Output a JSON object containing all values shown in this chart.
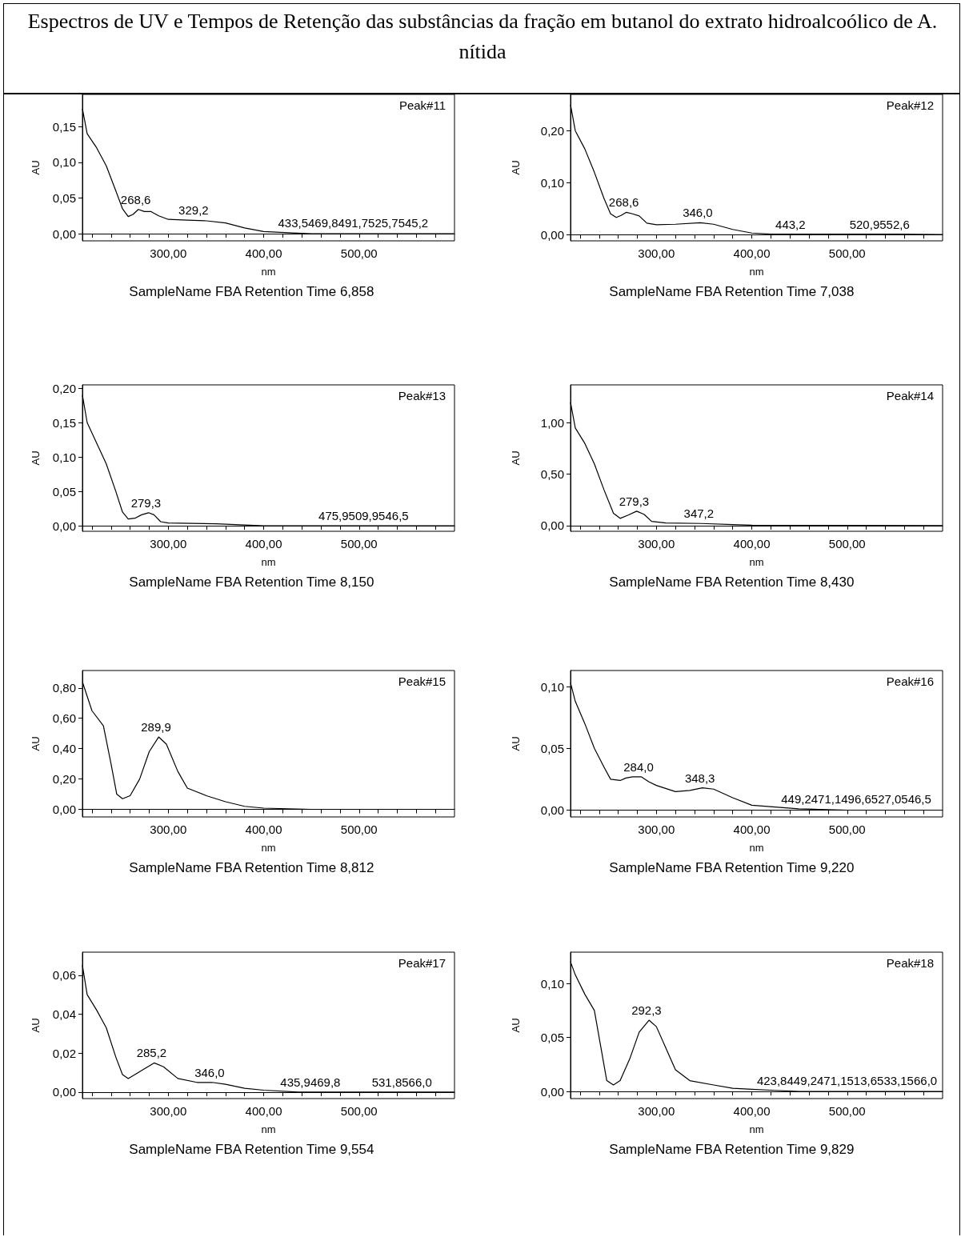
{
  "chart_data": [
    {
      "type": "other",
      "title": "Espectros de UV e Tempos de Retenção das substâncias da fração em butanol do extrato hidroalcoólico de A. nítida"
    },
    {
      "type": "line",
      "title": "Peak#11",
      "xlabel": "nm",
      "ylabel": "AU",
      "color": "#000000",
      "xlim": [
        210,
        600
      ],
      "ylim": [
        -0.01,
        0.195
      ],
      "xticks": [
        {
          "value": 220,
          "label": null
        },
        {
          "value": 240,
          "label": null
        },
        {
          "value": 260,
          "label": null
        },
        {
          "value": 280,
          "label": null
        },
        {
          "value": 300,
          "label": "300,00"
        },
        {
          "value": 320,
          "label": null
        },
        {
          "value": 340,
          "label": null
        },
        {
          "value": 360,
          "label": null
        },
        {
          "value": 380,
          "label": null
        },
        {
          "value": 400,
          "label": "400,00"
        },
        {
          "value": 420,
          "label": null
        },
        {
          "value": 440,
          "label": null
        },
        {
          "value": 460,
          "label": null
        },
        {
          "value": 480,
          "label": null
        },
        {
          "value": 500,
          "label": "500,00"
        },
        {
          "value": 520,
          "label": null
        },
        {
          "value": 540,
          "label": null
        },
        {
          "value": 560,
          "label": null
        },
        {
          "value": 580,
          "label": null
        }
      ],
      "yticks": [
        {
          "value": 0,
          "label": "0,00"
        },
        {
          "value": 0.05,
          "label": "0,05"
        },
        {
          "value": 0.1,
          "label": "0,10"
        },
        {
          "value": 0.15,
          "label": "0,15"
        }
      ],
      "x": [
        210,
        215,
        225,
        235,
        245,
        252,
        258,
        263,
        268.6,
        275,
        282,
        290,
        300,
        320,
        340,
        360,
        380,
        400,
        430,
        450,
        500,
        550,
        600
      ],
      "values": [
        0.175,
        0.14,
        0.12,
        0.095,
        0.06,
        0.035,
        0.024,
        0.027,
        0.034,
        0.031,
        0.031,
        0.025,
        0.02,
        0.019,
        0.018,
        0.015,
        0.008,
        0.003,
        0.001,
        0,
        0,
        0,
        0
      ],
      "annotations": [
        "SampleName FBA Retention Time 6,858",
        {
          "text": "268,6",
          "x": 268.6,
          "y": 0.034
        },
        {
          "text": "329,2",
          "x": 329.2,
          "y": 0.019
        },
        {
          "text": "433,5469,8491,7525,7545,2",
          "x": 433.5,
          "y": 0.001
        }
      ]
    },
    {
      "type": "line",
      "title": "Peak#12",
      "xlabel": "nm",
      "ylabel": "AU",
      "color": "#000000",
      "xlim": [
        210,
        600
      ],
      "ylim": [
        -0.012,
        0.27
      ],
      "xticks": [
        {
          "value": 220,
          "label": null
        },
        {
          "value": 240,
          "label": null
        },
        {
          "value": 260,
          "label": null
        },
        {
          "value": 280,
          "label": null
        },
        {
          "value": 300,
          "label": "300,00"
        },
        {
          "value": 320,
          "label": null
        },
        {
          "value": 340,
          "label": null
        },
        {
          "value": 360,
          "label": null
        },
        {
          "value": 380,
          "label": null
        },
        {
          "value": 400,
          "label": "400,00"
        },
        {
          "value": 420,
          "label": null
        },
        {
          "value": 440,
          "label": null
        },
        {
          "value": 460,
          "label": null
        },
        {
          "value": 480,
          "label": null
        },
        {
          "value": 500,
          "label": "500,00"
        },
        {
          "value": 520,
          "label": null
        },
        {
          "value": 540,
          "label": null
        },
        {
          "value": 560,
          "label": null
        },
        {
          "value": 580,
          "label": null
        }
      ],
      "yticks": [
        {
          "value": 0,
          "label": "0,00"
        },
        {
          "value": 0.1,
          "label": "0,10"
        },
        {
          "value": 0.2,
          "label": "0,20"
        }
      ],
      "x": [
        210,
        215,
        225,
        235,
        245,
        252,
        258,
        263,
        268.6,
        275,
        282,
        290,
        300,
        320,
        346,
        360,
        380,
        400,
        420,
        443.2,
        500,
        520.9,
        552.6,
        600
      ],
      "values": [
        0.25,
        0.2,
        0.165,
        0.12,
        0.07,
        0.04,
        0.033,
        0.037,
        0.043,
        0.04,
        0.036,
        0.022,
        0.019,
        0.02,
        0.023,
        0.02,
        0.01,
        0.003,
        0.001,
        0.001,
        0.001,
        0.001,
        0.001,
        0
      ],
      "annotations": [
        "SampleName FBA Retention Time 7,038",
        {
          "text": "268,6",
          "x": 268.6,
          "y": 0.043
        },
        {
          "text": "346,0",
          "x": 346,
          "y": 0.023
        },
        {
          "text": "443,2",
          "x": 443.2,
          "y": 0.001
        },
        {
          "text": "520,9552,6",
          "x": 520.9,
          "y": 0.001
        }
      ]
    },
    {
      "type": "line",
      "title": "Peak#13",
      "xlabel": "nm",
      "ylabel": "AU",
      "color": "#000000",
      "xlim": [
        210,
        600
      ],
      "ylim": [
        -0.008,
        0.205
      ],
      "xticks": [
        {
          "value": 220,
          "label": null
        },
        {
          "value": 240,
          "label": null
        },
        {
          "value": 260,
          "label": null
        },
        {
          "value": 280,
          "label": null
        },
        {
          "value": 300,
          "label": "300,00"
        },
        {
          "value": 320,
          "label": null
        },
        {
          "value": 340,
          "label": null
        },
        {
          "value": 360,
          "label": null
        },
        {
          "value": 380,
          "label": null
        },
        {
          "value": 400,
          "label": "400,00"
        },
        {
          "value": 420,
          "label": null
        },
        {
          "value": 440,
          "label": null
        },
        {
          "value": 460,
          "label": null
        },
        {
          "value": 480,
          "label": null
        },
        {
          "value": 500,
          "label": "500,00"
        },
        {
          "value": 520,
          "label": null
        },
        {
          "value": 540,
          "label": null
        },
        {
          "value": 560,
          "label": null
        },
        {
          "value": 580,
          "label": null
        }
      ],
      "yticks": [
        {
          "value": 0,
          "label": "0,00"
        },
        {
          "value": 0.05,
          "label": "0,05"
        },
        {
          "value": 0.1,
          "label": "0,10"
        },
        {
          "value": 0.15,
          "label": "0,15"
        },
        {
          "value": 0.2,
          "label": "0,20"
        }
      ],
      "x": [
        210,
        215,
        225,
        235,
        245,
        252,
        258,
        265,
        272,
        279.3,
        285,
        292,
        300,
        350,
        400,
        475.9,
        600
      ],
      "values": [
        0.19,
        0.15,
        0.12,
        0.09,
        0.05,
        0.02,
        0.01,
        0.011,
        0.016,
        0.019,
        0.016,
        0.006,
        0.004,
        0.003,
        0,
        0,
        0
      ],
      "annotations": [
        "SampleName FBA Retention Time 8,150",
        {
          "text": "279,3",
          "x": 279.3,
          "y": 0.019
        },
        {
          "text": "475,9509,9546,5",
          "x": 475.9,
          "y": 0
        }
      ]
    },
    {
      "type": "line",
      "title": "Peak#14",
      "xlabel": "nm",
      "ylabel": "AU",
      "color": "#000000",
      "xlim": [
        210,
        600
      ],
      "ylim": [
        -0.056,
        1.37
      ],
      "xticks": [
        {
          "value": 220,
          "label": null
        },
        {
          "value": 240,
          "label": null
        },
        {
          "value": 260,
          "label": null
        },
        {
          "value": 280,
          "label": null
        },
        {
          "value": 300,
          "label": "300,00"
        },
        {
          "value": 320,
          "label": null
        },
        {
          "value": 340,
          "label": null
        },
        {
          "value": 360,
          "label": null
        },
        {
          "value": 380,
          "label": null
        },
        {
          "value": 400,
          "label": "400,00"
        },
        {
          "value": 420,
          "label": null
        },
        {
          "value": 440,
          "label": null
        },
        {
          "value": 460,
          "label": null
        },
        {
          "value": 480,
          "label": null
        },
        {
          "value": 500,
          "label": "500,00"
        },
        {
          "value": 520,
          "label": null
        },
        {
          "value": 540,
          "label": null
        },
        {
          "value": 560,
          "label": null
        },
        {
          "value": 580,
          "label": null
        }
      ],
      "yticks": [
        {
          "value": 0,
          "label": "0,00"
        },
        {
          "value": 0.5,
          "label": "0,50"
        },
        {
          "value": 1,
          "label": "1,00"
        }
      ],
      "x": [
        210,
        215,
        225,
        235,
        245,
        255,
        262,
        270,
        279.3,
        287,
        295,
        310,
        347.2,
        380,
        400,
        600
      ],
      "values": [
        1.2,
        0.95,
        0.8,
        0.6,
        0.35,
        0.12,
        0.07,
        0.1,
        0.14,
        0.11,
        0.04,
        0.025,
        0.02,
        0.01,
        0.003,
        0
      ],
      "annotations": [
        "SampleName FBA Retention Time 8,430",
        {
          "text": "279,3",
          "x": 279.3,
          "y": 0.14
        },
        {
          "text": "347,2",
          "x": 347.2,
          "y": 0.02
        }
      ]
    },
    {
      "type": "line",
      "title": "Peak#15",
      "xlabel": "nm",
      "ylabel": "AU",
      "color": "#000000",
      "xlim": [
        210,
        600
      ],
      "ylim": [
        -0.05,
        0.915
      ],
      "xticks": [
        {
          "value": 220,
          "label": null
        },
        {
          "value": 240,
          "label": null
        },
        {
          "value": 260,
          "label": null
        },
        {
          "value": 280,
          "label": null
        },
        {
          "value": 300,
          "label": "300,00"
        },
        {
          "value": 320,
          "label": null
        },
        {
          "value": 340,
          "label": null
        },
        {
          "value": 360,
          "label": null
        },
        {
          "value": 380,
          "label": null
        },
        {
          "value": 400,
          "label": "400,00"
        },
        {
          "value": 420,
          "label": null
        },
        {
          "value": 440,
          "label": null
        },
        {
          "value": 460,
          "label": null
        },
        {
          "value": 480,
          "label": null
        },
        {
          "value": 500,
          "label": "500,00"
        },
        {
          "value": 520,
          "label": null
        },
        {
          "value": 540,
          "label": null
        },
        {
          "value": 560,
          "label": null
        },
        {
          "value": 580,
          "label": null
        }
      ],
      "yticks": [
        {
          "value": 0,
          "label": "0,00"
        },
        {
          "value": 0.2,
          "label": "0,20"
        },
        {
          "value": 0.4,
          "label": "0,40"
        },
        {
          "value": 0.6,
          "label": "0,60"
        },
        {
          "value": 0.8,
          "label": "0,80"
        }
      ],
      "x": [
        210,
        220,
        232,
        240,
        246,
        252,
        260,
        270,
        280,
        289.9,
        298,
        310,
        320,
        340,
        360,
        380,
        400,
        450,
        600
      ],
      "values": [
        0.84,
        0.65,
        0.55,
        0.3,
        0.1,
        0.07,
        0.09,
        0.2,
        0.38,
        0.477,
        0.43,
        0.25,
        0.14,
        0.09,
        0.05,
        0.02,
        0.008,
        0,
        0
      ],
      "annotations": [
        "SampleName FBA Retention Time 8,812",
        {
          "text": "289,9",
          "x": 289.9,
          "y": 0.477
        }
      ]
    },
    {
      "type": "line",
      "title": "Peak#16",
      "xlabel": "nm",
      "ylabel": "AU",
      "color": "#000000",
      "xlim": [
        210,
        600
      ],
      "ylim": [
        -0.0055,
        0.113
      ],
      "xticks": [
        {
          "value": 220,
          "label": null
        },
        {
          "value": 240,
          "label": null
        },
        {
          "value": 260,
          "label": null
        },
        {
          "value": 280,
          "label": null
        },
        {
          "value": 300,
          "label": "300,00"
        },
        {
          "value": 320,
          "label": null
        },
        {
          "value": 340,
          "label": null
        },
        {
          "value": 360,
          "label": null
        },
        {
          "value": 380,
          "label": null
        },
        {
          "value": 400,
          "label": "400,00"
        },
        {
          "value": 420,
          "label": null
        },
        {
          "value": 440,
          "label": null
        },
        {
          "value": 460,
          "label": null
        },
        {
          "value": 480,
          "label": null
        },
        {
          "value": 500,
          "label": "500,00"
        },
        {
          "value": 520,
          "label": null
        },
        {
          "value": 540,
          "label": null
        },
        {
          "value": 560,
          "label": null
        },
        {
          "value": 580,
          "label": null
        }
      ],
      "yticks": [
        {
          "value": 0,
          "label": "0,00"
        },
        {
          "value": 0.05,
          "label": "0,05"
        },
        {
          "value": 0.1,
          "label": "0,10"
        }
      ],
      "x": [
        210,
        215,
        225,
        235,
        245,
        252,
        262,
        268,
        275,
        284,
        292,
        300,
        320,
        335,
        348.3,
        360,
        380,
        400,
        449.2,
        500,
        600
      ],
      "values": [
        0.103,
        0.088,
        0.07,
        0.05,
        0.035,
        0.025,
        0.024,
        0.026,
        0.027,
        0.027,
        0.023,
        0.02,
        0.015,
        0.016,
        0.018,
        0.017,
        0.01,
        0.004,
        0.001,
        0,
        0
      ],
      "annotations": [
        "SampleName FBA Retention Time 9,220",
        {
          "text": "284,0",
          "x": 284,
          "y": 0.027
        },
        {
          "text": "348,3",
          "x": 348.3,
          "y": 0.018
        },
        {
          "text": "449,2471,1496,6527,0546,5",
          "x": 449.2,
          "y": 0.001
        }
      ]
    },
    {
      "type": "line",
      "title": "Peak#17",
      "xlabel": "nm",
      "ylabel": "AU",
      "color": "#000000",
      "xlim": [
        210,
        600
      ],
      "ylim": [
        -0.0033,
        0.0718
      ],
      "xticks": [
        {
          "value": 220,
          "label": null
        },
        {
          "value": 240,
          "label": null
        },
        {
          "value": 260,
          "label": null
        },
        {
          "value": 280,
          "label": null
        },
        {
          "value": 300,
          "label": "300,00"
        },
        {
          "value": 320,
          "label": null
        },
        {
          "value": 340,
          "label": null
        },
        {
          "value": 360,
          "label": null
        },
        {
          "value": 380,
          "label": null
        },
        {
          "value": 400,
          "label": "400,00"
        },
        {
          "value": 420,
          "label": null
        },
        {
          "value": 440,
          "label": null
        },
        {
          "value": 460,
          "label": null
        },
        {
          "value": 480,
          "label": null
        },
        {
          "value": 500,
          "label": "500,00"
        },
        {
          "value": 520,
          "label": null
        },
        {
          "value": 540,
          "label": null
        },
        {
          "value": 560,
          "label": null
        },
        {
          "value": 580,
          "label": null
        }
      ],
      "yticks": [
        {
          "value": 0,
          "label": "0,00"
        },
        {
          "value": 0.02,
          "label": "0,02"
        },
        {
          "value": 0.04,
          "label": "0,04"
        },
        {
          "value": 0.06,
          "label": "0,06"
        }
      ],
      "x": [
        210,
        215,
        225,
        235,
        245,
        252,
        258,
        265,
        275,
        285.2,
        295,
        310,
        330,
        346,
        360,
        380,
        400,
        435.9,
        531.8,
        600
      ],
      "values": [
        0.065,
        0.05,
        0.042,
        0.033,
        0.018,
        0.009,
        0.007,
        0.009,
        0.012,
        0.015,
        0.013,
        0.007,
        0.005,
        0.005,
        0.004,
        0.002,
        0.001,
        0,
        0,
        0
      ],
      "annotations": [
        "SampleName FBA Retention Time 9,554",
        {
          "text": "285,2",
          "x": 285.2,
          "y": 0.015
        },
        {
          "text": "346,0",
          "x": 346,
          "y": 0.005
        },
        {
          "text": "435,9469,8",
          "x": 435.9,
          "y": 0
        },
        {
          "text": "531,8566,0",
          "x": 531.8,
          "y": 0
        }
      ]
    },
    {
      "type": "line",
      "title": "Peak#18",
      "xlabel": "nm",
      "ylabel": "AU",
      "color": "#000000",
      "xlim": [
        210,
        600
      ],
      "ylim": [
        -0.0066,
        0.129
      ],
      "xticks": [
        {
          "value": 220,
          "label": null
        },
        {
          "value": 240,
          "label": null
        },
        {
          "value": 260,
          "label": null
        },
        {
          "value": 280,
          "label": null
        },
        {
          "value": 300,
          "label": "300,00"
        },
        {
          "value": 320,
          "label": null
        },
        {
          "value": 340,
          "label": null
        },
        {
          "value": 360,
          "label": null
        },
        {
          "value": 380,
          "label": null
        },
        {
          "value": 400,
          "label": "400,00"
        },
        {
          "value": 420,
          "label": null
        },
        {
          "value": 440,
          "label": null
        },
        {
          "value": 460,
          "label": null
        },
        {
          "value": 480,
          "label": null
        },
        {
          "value": 500,
          "label": "500,00"
        },
        {
          "value": 520,
          "label": null
        },
        {
          "value": 540,
          "label": null
        },
        {
          "value": 560,
          "label": null
        },
        {
          "value": 580,
          "label": null
        }
      ],
      "yticks": [
        {
          "value": 0,
          "label": "0,00"
        },
        {
          "value": 0.05,
          "label": "0,05"
        },
        {
          "value": 0.1,
          "label": "0,10"
        }
      ],
      "x": [
        210,
        215,
        225,
        235,
        242,
        248,
        255,
        262,
        272,
        282,
        292.3,
        300,
        310,
        320,
        335,
        360,
        380,
        400,
        423.8,
        450,
        600
      ],
      "values": [
        0.12,
        0.108,
        0.09,
        0.075,
        0.04,
        0.01,
        0.006,
        0.01,
        0.03,
        0.055,
        0.066,
        0.06,
        0.04,
        0.02,
        0.01,
        0.006,
        0.003,
        0.002,
        0.001,
        0,
        0
      ],
      "annotations": [
        "SampleName FBA Retention Time 9,829",
        {
          "text": "292,3",
          "x": 292.3,
          "y": 0.066
        },
        {
          "text": "423,8449,2471,1513,6533,1566,0",
          "x": 423.8,
          "y": 0.001
        }
      ]
    }
  ]
}
